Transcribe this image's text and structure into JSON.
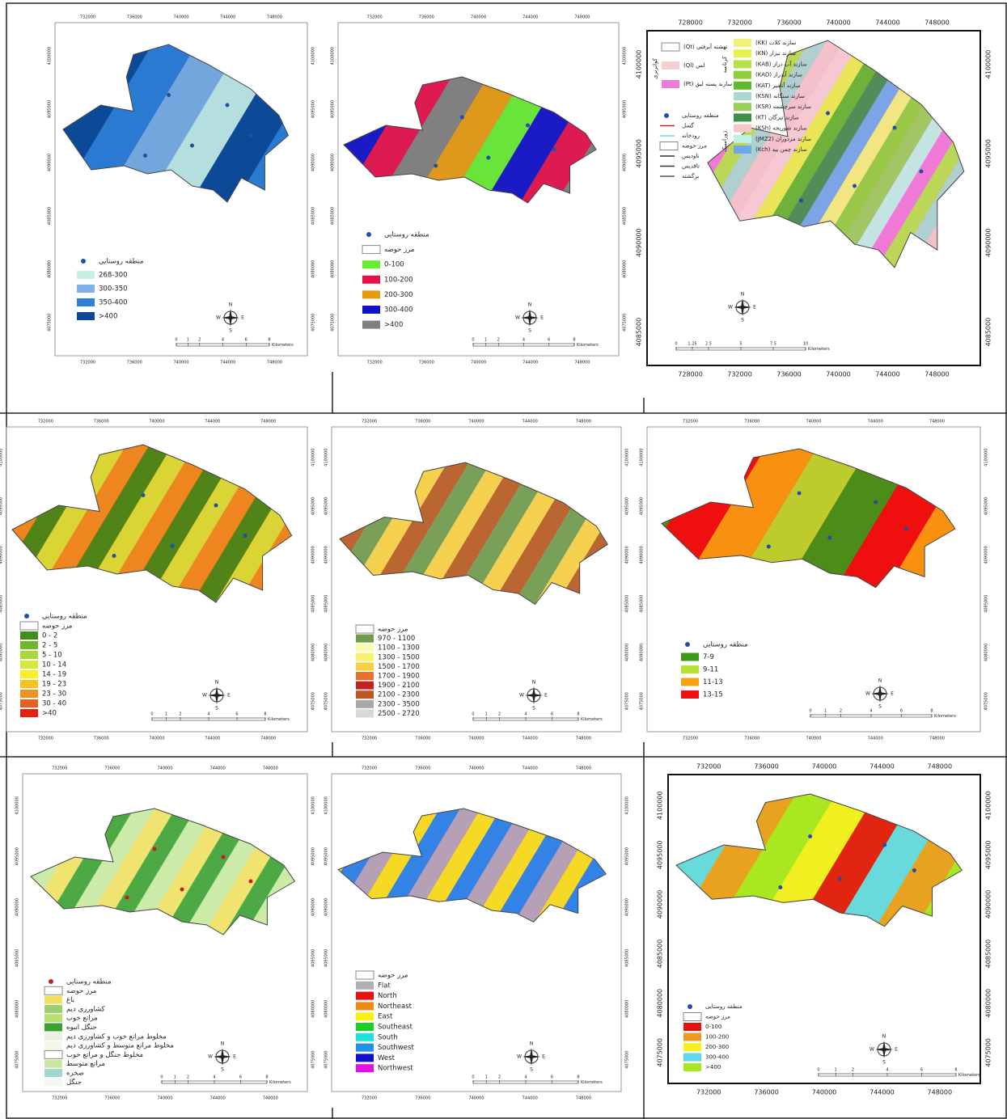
{
  "compass": [
    "N",
    "E",
    "S",
    "W"
  ],
  "panels": [
    {
      "scale_unit": "Kilometers",
      "scale_ticks": [
        0,
        1,
        2,
        4,
        6,
        8
      ],
      "x_ticks": [
        732000,
        736000,
        740000,
        744000,
        748000
      ],
      "y_ticks": [
        4100000,
        4095000,
        4090000,
        4085000,
        4080000,
        4075000
      ],
      "legend": [
        {
          "label": "منطقه روستایی",
          "color": "#1f4fa8",
          "symbol": "point"
        },
        {
          "label": "268-300",
          "color": "#c6f0e6",
          "symbol": "fill"
        },
        {
          "label": "300-350",
          "color": "#7fb0e6",
          "symbol": "fill"
        },
        {
          "label": "350-400",
          "color": "#2f7fd8",
          "symbol": "fill"
        },
        {
          "label": ">400",
          "color": "#0c4a98",
          "symbol": "fill"
        }
      ]
    },
    {
      "scale_unit": "Kilometers",
      "scale_ticks": [
        0,
        1,
        2,
        4,
        6,
        8
      ],
      "x_ticks": [
        732000,
        736000,
        740000,
        744000,
        748000
      ],
      "y_ticks": [
        4100000,
        4095000,
        4090000,
        4085000,
        4080000,
        4075000
      ],
      "legend": [
        {
          "label": "منطقه روستایی",
          "color": "#1f4fa8",
          "symbol": "point"
        },
        {
          "label": "مرز حوضه",
          "color": "#ffffff",
          "symbol": "boundary"
        },
        {
          "label": "0-100",
          "color": "#66ee33",
          "symbol": "fill"
        },
        {
          "label": "100-200",
          "color": "#e8104a",
          "symbol": "fill"
        },
        {
          "label": "200-300",
          "color": "#e89a10",
          "symbol": "fill"
        },
        {
          "label": "300-400",
          "color": "#1010cc",
          "symbol": "fill"
        },
        {
          "label": ">400",
          "color": "#808080",
          "symbol": "fill"
        }
      ]
    },
    {
      "scale_unit": "Kilometers",
      "scale_ticks": [
        0,
        1.25,
        2.5,
        5,
        7.5,
        10
      ],
      "x_ticks": [
        728000,
        732000,
        736000,
        740000,
        744000,
        748000
      ],
      "y_ticks": [
        4100000,
        4095000,
        4090000,
        4085000
      ],
      "legend": [
        {
          "label": "(KK) سازند کلات",
          "color": "#f2f27a",
          "symbol": "fill"
        },
        {
          "label": "(KN) سازند نیزار",
          "color": "#e8f04a",
          "symbol": "fill"
        },
        {
          "label": "(KAB) سازند آب دراز",
          "color": "#b6e04a",
          "symbol": "fill"
        },
        {
          "label": "(KAD) سازند آبدراز",
          "color": "#8fd03a",
          "symbol": "fill"
        },
        {
          "label": "(KAT) سازند آتامیر",
          "color": "#5fb82a",
          "symbol": "fill"
        },
        {
          "label": "(KSN) سازند سنگانه",
          "color": "#a8d8d0",
          "symbol": "fill"
        },
        {
          "label": "(KSR) سازند سرچشمه",
          "color": "#9acd5a",
          "symbol": "fill"
        },
        {
          "label": "(KT) سازند تیرگان",
          "color": "#3f8f4a",
          "symbol": "fill"
        },
        {
          "label": "(KSh) سازند شوریجه",
          "color": "#f4c8c8",
          "symbol": "fill"
        },
        {
          "label": "(JMZ2) سازند مزدوران",
          "color": "#bff0e4",
          "symbol": "fill"
        },
        {
          "label": "(Kch) سازند چمن بید",
          "color": "#6fa8e8",
          "symbol": "fill"
        },
        {
          "label": "(Qt) نهشته آبرفتی",
          "color": "#ffffff",
          "symbol": "boundary"
        },
        {
          "label": "(Ql) لس",
          "color": "#f6d0d0",
          "symbol": "fill"
        },
        {
          "label": "(Pt) سازند پسته لیق",
          "color": "#f07ad8",
          "symbol": "fill"
        },
        {
          "label": "منطقه روستایی",
          "color": "#1f4fa8",
          "symbol": "point"
        },
        {
          "label": "گسل",
          "color": "#d02020",
          "symbol": "line"
        },
        {
          "label": "رودخانه",
          "color": "#7ad0e0",
          "symbol": "line"
        },
        {
          "label": "مرز حوضه",
          "color": "#ffffff",
          "symbol": "boundary"
        },
        {
          "label": "ناودیس",
          "color": "#333333",
          "symbol": "line"
        },
        {
          "label": "تاقدیس",
          "color": "#333333",
          "symbol": "line"
        },
        {
          "label": "برگشته",
          "color": "#555555",
          "symbol": "line"
        }
      ],
      "group_labels": [
        "کرتاسه",
        "ژوراسیک",
        "کواترنری"
      ]
    },
    {
      "scale_unit": "Kilometers",
      "scale_ticks": [
        0,
        1,
        2,
        4,
        6,
        8
      ],
      "x_ticks": [
        732000,
        736000,
        740000,
        744000,
        748000
      ],
      "y_ticks": [
        4100000,
        4095000,
        4090000,
        4085000,
        4080000,
        4075000
      ],
      "legend": [
        {
          "label": "منطقه روستایی",
          "color": "#1f4fa8",
          "symbol": "point"
        },
        {
          "label": "مرز حوضه",
          "color": "#ffffff",
          "symbol": "boundary"
        },
        {
          "label": "0 - 2",
          "color": "#3f8f1a",
          "symbol": "fill"
        },
        {
          "label": "2 - 5",
          "color": "#6fb82a",
          "symbol": "fill"
        },
        {
          "label": "5 - 10",
          "color": "#a8d83a",
          "symbol": "fill"
        },
        {
          "label": "10 - 14",
          "color": "#d8e83a",
          "symbol": "fill"
        },
        {
          "label": "14 - 19",
          "color": "#f8f020",
          "symbol": "fill"
        },
        {
          "label": "19 - 23",
          "color": "#f8c020",
          "symbol": "fill"
        },
        {
          "label": "23 - 30",
          "color": "#f09020",
          "symbol": "fill"
        },
        {
          "label": "30 - 40",
          "color": "#e86020",
          "symbol": "fill"
        },
        {
          "label": ">40",
          "color": "#e82010",
          "symbol": "fill"
        }
      ]
    },
    {
      "scale_unit": "Kilometers",
      "scale_ticks": [
        0,
        1,
        2,
        4,
        6,
        8
      ],
      "x_ticks": [
        732000,
        736000,
        740000,
        744000,
        748000
      ],
      "y_ticks": [
        4100000,
        4095000,
        4090000,
        4085000,
        4080000,
        4075000
      ],
      "legend": [
        {
          "label": "مرز حوضه",
          "color": "#ffffff",
          "symbol": "boundary"
        },
        {
          "label": "970 - 1100",
          "color": "#6f9a4a",
          "symbol": "fill"
        },
        {
          "label": "1100 - 1300",
          "color": "#fafab0",
          "symbol": "fill"
        },
        {
          "label": "1300 - 1500",
          "color": "#f8f070",
          "symbol": "fill"
        },
        {
          "label": "1500 - 1700",
          "color": "#f8d040",
          "symbol": "fill"
        },
        {
          "label": "1700 - 1900",
          "color": "#e87030",
          "symbol": "fill"
        },
        {
          "label": "1900 - 2100",
          "color": "#c82020",
          "symbol": "fill"
        },
        {
          "label": "2100 - 2300",
          "color": "#b85a20",
          "symbol": "fill"
        },
        {
          "label": "2300 - 3500",
          "color": "#a8a8a8",
          "symbol": "fill"
        },
        {
          "label": "2500 - 2720",
          "color": "#d8d8d8",
          "symbol": "fill"
        }
      ]
    },
    {
      "scale_unit": "Kilometers",
      "scale_ticks": [
        0,
        1,
        2,
        4,
        6,
        8
      ],
      "x_ticks": [
        732000,
        736000,
        740000,
        744000,
        748000
      ],
      "y_ticks": [
        4100000,
        4095000,
        4090000,
        4085000,
        4080000,
        4075000
      ],
      "legend": [
        {
          "label": "منطقه روستایی",
          "color": "#1f4fa8",
          "symbol": "point"
        },
        {
          "label": "7-9",
          "color": "#3a9a1a",
          "symbol": "fill"
        },
        {
          "label": "9-11",
          "color": "#b8e030",
          "symbol": "fill"
        },
        {
          "label": "11-13",
          "color": "#f8a010",
          "symbol": "fill"
        },
        {
          "label": "13-15",
          "color": "#f01010",
          "symbol": "fill"
        }
      ]
    },
    {
      "scale_unit": "Kilometers",
      "scale_ticks": [
        0,
        1,
        2,
        4,
        6,
        8
      ],
      "x_ticks": [
        732000,
        736000,
        740000,
        744000,
        748000
      ],
      "y_ticks": [
        4100000,
        4095000,
        4090000,
        4085000,
        4080000,
        4075000
      ],
      "legend": [
        {
          "label": "منطقه روستایی",
          "color": "#c02020",
          "symbol": "point"
        },
        {
          "label": "مرز حوضه",
          "color": "#ffffff",
          "symbol": "boundary"
        },
        {
          "label": "باغ",
          "color": "#f0e060",
          "symbol": "fill"
        },
        {
          "label": "کشاورزی دیم",
          "color": "#9ad070",
          "symbol": "fill"
        },
        {
          "label": "مراتع خوب",
          "color": "#b8e070",
          "symbol": "fill"
        },
        {
          "label": "جنگل انبوه",
          "color": "#3aa030",
          "symbol": "fill"
        },
        {
          "label": "مخلوط مراتع خوب و کشاورزی دیم",
          "color": "#e8f0e0",
          "symbol": "fill"
        },
        {
          "label": "مخلوط مراتع متوسط و کشاورزی دیم",
          "color": "#f4f8e8",
          "symbol": "fill"
        },
        {
          "label": "مخلوط جنگل و مراتع خوب",
          "color": "#ffffff",
          "symbol": "boundary"
        },
        {
          "label": "مراتع متوسط",
          "color": "#c8e8a0",
          "symbol": "fill"
        },
        {
          "label": "صخره",
          "color": "#a0d8d0",
          "symbol": "fill"
        },
        {
          "label": "جنگل",
          "color": "#f0f8f0",
          "symbol": "fill"
        }
      ]
    },
    {
      "scale_unit": "Kilometers",
      "scale_ticks": [
        0,
        1,
        2,
        4,
        6,
        8
      ],
      "x_ticks": [
        732000,
        736000,
        740000,
        744000,
        748000
      ],
      "y_ticks": [
        4100000,
        4095000,
        4090000,
        4085000,
        4080000,
        4075000
      ],
      "legend": [
        {
          "label": "مرز حوضه",
          "color": "#ffffff",
          "symbol": "boundary"
        },
        {
          "label": "Flat",
          "color": "#b0b0b0",
          "symbol": "fill"
        },
        {
          "label": "North",
          "color": "#e81010",
          "symbol": "fill"
        },
        {
          "label": "Northeast",
          "color": "#f08a10",
          "symbol": "fill"
        },
        {
          "label": "East",
          "color": "#f8f010",
          "symbol": "fill"
        },
        {
          "label": "Southeast",
          "color": "#20d020",
          "symbol": "fill"
        },
        {
          "label": "South",
          "color": "#20e0e0",
          "symbol": "fill"
        },
        {
          "label": "Southwest",
          "color": "#2090e8",
          "symbol": "fill"
        },
        {
          "label": "West",
          "color": "#1010c8",
          "symbol": "fill"
        },
        {
          "label": "Northwest",
          "color": "#e010e0",
          "symbol": "fill"
        }
      ]
    },
    {
      "scale_unit": "Kilometers",
      "scale_ticks": [
        0,
        1,
        2,
        4,
        6,
        8
      ],
      "x_ticks": [
        732000,
        736000,
        740000,
        744000,
        748000
      ],
      "y_ticks": [
        4100000,
        4095000,
        4090000,
        4085000,
        4080000,
        4075000
      ],
      "legend": [
        {
          "label": "منطقه روستایی",
          "color": "#1f4fa8",
          "symbol": "point"
        },
        {
          "label": "مرز حوضه",
          "color": "#ffffff",
          "symbol": "boundary"
        },
        {
          "label": "0-100",
          "color": "#e81010",
          "symbol": "fill"
        },
        {
          "label": "100-200",
          "color": "#f09a20",
          "symbol": "fill"
        },
        {
          "label": "200-300",
          "color": "#f8f020",
          "symbol": "fill"
        },
        {
          "label": "300-400",
          "color": "#60d8f0",
          "symbol": "fill"
        },
        {
          "label": ">400",
          "color": "#a8e820",
          "symbol": "fill"
        }
      ]
    }
  ]
}
